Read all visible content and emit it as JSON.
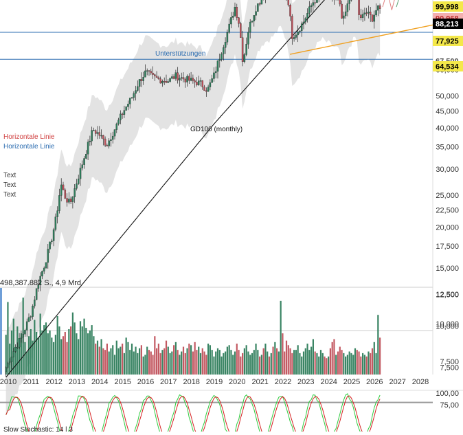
{
  "chart_data": {
    "type": "candlestick",
    "scale": "log",
    "grid": false,
    "colors": {
      "up": "#2e7d5b",
      "down": "#c0505a",
      "band": "#e3e3e3",
      "ma": "#111111",
      "support": "#2b6cb0",
      "trend": "#f0a020",
      "stoch_k": "#2ecc40",
      "stoch_d": "#d62020"
    },
    "x_ticks": [
      "2010",
      "2011",
      "2012",
      "2013",
      "2014",
      "2015",
      "2016",
      "2017",
      "2018",
      "2019",
      "2020",
      "2021",
      "2022",
      "2023",
      "2024",
      "2025",
      "2026",
      "2027",
      "2028"
    ],
    "y_ticks": [
      "60,000",
      "50,000",
      "45,000",
      "40,000",
      "35,000",
      "30,000",
      "25,000",
      "22,500",
      "20,000",
      "17,500",
      "15,000",
      "12,500",
      "10,000",
      "7,500"
    ],
    "y_tick_values": [
      60000,
      50000,
      45000,
      40000,
      35000,
      30000,
      25000,
      22500,
      20000,
      17500,
      15000,
      12500,
      10000,
      7500
    ],
    "price_badges": [
      {
        "label": "99,998",
        "value": 99998,
        "bg": "#f4e84a",
        "fg": "#000000"
      },
      {
        "label": "90,968",
        "value": 90968,
        "bg": "#f3b0b0",
        "fg": "#c03030"
      },
      {
        "label": "88,213",
        "value": 88213,
        "bg": "#000000",
        "fg": "#ffffff"
      },
      {
        "label": "77,925",
        "value": 77925,
        "bg": "#f4e84a",
        "fg": "#000000"
      },
      {
        "label": "67,500",
        "value": 67500,
        "bg": "#ffffff",
        "fg": "#555555"
      },
      {
        "label": "64,534",
        "value": 64534,
        "bg": "#f4e84a",
        "fg": "#000000"
      }
    ],
    "support_levels": [
      77925,
      64534
    ],
    "annotations": {
      "support": "Unterstützungen",
      "ma": "GD100 (monthly)",
      "legend_red": "Horizontale Linie",
      "legend_blue": "Horizontale Linie",
      "text1": "Text",
      "text2": "Text",
      "text3": "Text"
    },
    "volume": {
      "label": "498,387.882 S., 4,9 Mrd.",
      "ticks": [
        "12,500",
        "10,000",
        "7,500"
      ],
      "tick_values": [
        12500,
        10000,
        7500
      ],
      "monthly_values": [
        9200,
        11800,
        8600,
        9500,
        10400,
        8200,
        9800,
        8900,
        9300,
        12200,
        8700,
        8100,
        9100,
        9600,
        8800,
        10300,
        9400,
        9000,
        10800,
        9500,
        9900,
        10100,
        9300,
        9500,
        9000,
        8700,
        9200,
        10600,
        9800,
        8900,
        9100,
        9400,
        8700,
        9600,
        9800,
        10900,
        10100,
        9300,
        8900,
        10200,
        9800,
        10400,
        9700,
        9300,
        9500,
        9900,
        9100,
        8600,
        8800,
        8400,
        8900,
        8300,
        8200,
        8600,
        8100,
        8300,
        8500,
        7900,
        8800,
        8300,
        8400,
        8600,
        8000,
        9000,
        8700,
        8200,
        8600,
        8100,
        8400,
        8000,
        8300,
        8500,
        7800,
        7900,
        8400,
        8200,
        8100,
        7900,
        9100,
        8300,
        8600,
        8000,
        8200,
        8300,
        8800,
        8400,
        8000,
        8100,
        8500,
        8700,
        8200,
        7900,
        8100,
        8400,
        8000,
        8300,
        8600,
        8500,
        8100,
        8700,
        8200,
        8400,
        8000,
        8300,
        8100,
        7900,
        8600,
        8500,
        8200,
        7800,
        8100,
        8300,
        8200,
        7800,
        8000,
        8100,
        8400,
        8500,
        8200,
        7900,
        8100,
        8600,
        8200,
        7800,
        8000,
        8300,
        8500,
        8100,
        7900,
        8000,
        8200,
        8600,
        8200,
        7800,
        7900,
        8300,
        8600,
        8100,
        7800,
        8000,
        8400,
        8700,
        8300,
        8100,
        11900,
        9300,
        8100,
        8800,
        8500,
        8300,
        8000,
        8200,
        8200,
        8500,
        8000,
        7800,
        8100,
        8300,
        8600,
        8200,
        8400,
        8900,
        8100,
        8000,
        7800,
        8200,
        8000,
        7800,
        7700,
        7800,
        8300,
        8700,
        8900,
        7900,
        8100,
        8400,
        8200,
        8000,
        7800,
        7900,
        8100,
        8000,
        7900,
        8300,
        8200,
        8100,
        7800,
        8000,
        7900,
        7800,
        8100,
        8000,
        8300,
        8700,
        8000,
        10700,
        9000,
        8400,
        12100,
        8600,
        8300,
        8800,
        8100,
        8400,
        8600,
        8000,
        8800,
        8200,
        9100,
        9900,
        8300,
        8600,
        8400,
        8200,
        8500,
        7700,
        8800
      ]
    },
    "stochastic": {
      "label": "Slow Stochastic: 14 | 3",
      "ticks": [
        "100,00",
        "75,00"
      ],
      "tick_values": [
        100,
        75
      ]
    },
    "x_start_year": 2009.9,
    "x_end_year": 2028.3,
    "y_min": 6800,
    "y_max": 100000
  }
}
